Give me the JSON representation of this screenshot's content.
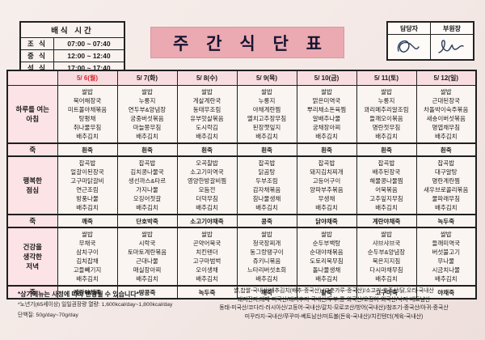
{
  "title": "주 간 식 단 표",
  "theme": {
    "title_pink": "#eba9b2",
    "header_pink": "#f8dde0",
    "label_pink": "#fbe3e6",
    "highlight_red": "#d9272e",
    "ink_blue": "#2a3a55"
  },
  "service_times": {
    "title": "배식  시간",
    "rows": [
      {
        "name": "조 식",
        "time": "07:00 ~ 07:40"
      },
      {
        "name": "중 식",
        "time": "12:00 ~ 12:40"
      },
      {
        "name": "석 식",
        "time": "17:00 ~ 17:40"
      }
    ]
  },
  "approval": {
    "left_label": "담당자",
    "right_label": "부원장",
    "left_signed": "signature-scribble",
    "right_signed": "signature-scribble"
  },
  "menu": {
    "days": [
      {
        "label": "5/ 6(월)",
        "highlight": true
      },
      {
        "label": "5/ 7(화)",
        "highlight": false
      },
      {
        "label": "5/ 8(수)",
        "highlight": false
      },
      {
        "label": "5/ 9(목)",
        "highlight": false
      },
      {
        "label": "5/ 10(금)",
        "highlight": false
      },
      {
        "label": "5/ 11(토)",
        "highlight": false
      },
      {
        "label": "5/ 12(일)",
        "highlight": false
      }
    ],
    "sections": [
      {
        "label": "하루를 여는\n아침",
        "type": "meal",
        "columns": [
          [
            "쌀밥",
            "북어해장국",
            "미트볼야채볶음",
            "탕평채",
            "취나물무침",
            "배추김치"
          ],
          [
            "쌀밥",
            "누룽지",
            "연두부&양념장",
            "궁중버섯볶음",
            "마늘쫑무침",
            "배추김치"
          ],
          [
            "쌀밥",
            "게살계란국",
            "동태무조림",
            "유부맛살볶음",
            "도시락김",
            "배추김치"
          ],
          [
            "쌀밥",
            "누룽지",
            "야채계란찜",
            "멸치고추장무침",
            "된장깻잎지",
            "배추김치"
          ],
          [
            "쌀밥",
            "맑은미역국",
            "뿌리채소돈육찜",
            "알배추나물",
            "궁채장아찌",
            "배추김치"
          ],
          [
            "쌀밥",
            "누룽지",
            "꽈리메추리알조림",
            "들깨오이볶음",
            "명란젓무침",
            "배추김치"
          ],
          [
            "쌀밥",
            "근대된장국",
            "차돌박이숙주볶음",
            "새송이버섯볶음",
            "명엽채무침",
            "배추김치"
          ]
        ]
      },
      {
        "label": "죽",
        "type": "porridge",
        "columns": [
          "흰죽",
          "흰죽",
          "흰죽",
          "흰죽",
          "흰죽",
          "흰죽",
          "흰죽"
        ]
      },
      {
        "label": "행복한\n점심",
        "type": "meal",
        "columns": [
          [
            "잡곡밥",
            "얼갈이된장국",
            "고구마닭갈비",
            "연근조림",
            "방풍나물",
            "배추김치"
          ],
          [
            "잡곡밥",
            "김치콩나물국",
            "생선까스&타르",
            "가지나물",
            "오징어젓갈",
            "배추김치"
          ],
          [
            "오곡찰밥",
            "소고기미역국",
            "영양한방갈비찜",
            "모듬전",
            "더덕무침",
            "배추김치"
          ],
          [
            "잡곡밥",
            "닭곰탕",
            "두부조림",
            "감자채볶음",
            "참나물생채",
            "배추김치"
          ],
          [
            "잡곡밥",
            "돼지김치찌개",
            "고등어구이",
            "양파부추볶음",
            "무생채",
            "배추김치"
          ],
          [
            "잡곡밥",
            "배추된장국",
            "해물콩나물찜",
            "어묵볶음",
            "고추잎지무침",
            "배추김치"
          ],
          [
            "잡곡밥",
            "대구알탕",
            "명란계란찜",
            "새우브로콜리볶음",
            "물파래무침",
            "배추김치"
          ]
        ]
      },
      {
        "label": "죽",
        "type": "porridge",
        "columns": [
          "깨죽",
          "단호박죽",
          "소고기야채죽",
          "콩죽",
          "닭야채죽",
          "계란야채죽",
          "녹두죽"
        ]
      },
      {
        "label": "건강을\n생각한\n저녁",
        "type": "meal",
        "columns": [
          [
            "쌀밥",
            "무채국",
            "삼치구이",
            "김치잡채",
            "고들빼기지",
            "배추김치"
          ],
          [
            "쌀밥",
            "시락국",
            "토마토계란볶음",
            "근대나물",
            "매실장아찌",
            "배추김치"
          ],
          [
            "쌀밥",
            "곤약어묵국",
            "치킨텐더",
            "고구마범벅",
            "오이생채",
            "배추김치"
          ],
          [
            "쌀밥",
            "청국장찌개",
            "동그랑땡구이",
            "쥬키니볶음",
            "느타리버섯초회",
            "배추김치"
          ],
          [
            "쌀밥",
            "순두부백탕",
            "순대야채볶음",
            "도토리묵무침",
            "돌나물생채",
            "배추김치"
          ],
          [
            "쌀밥",
            "샤브샤브국",
            "순두부&양념장",
            "묵은지지짐",
            "다시마채무침",
            "배추김치"
          ],
          [
            "쌀밥",
            "들깨미역국",
            "버섯불고기",
            "무나물",
            "시금치나물",
            "배추김치"
          ]
        ]
      },
      {
        "label": "죽",
        "type": "porridge",
        "columns": [
          "계란야채죽",
          "땅콩죽",
          "녹두죽",
          "깨죽",
          "팥죽",
          "고구마죽",
          "야채죽"
        ]
      }
    ]
  },
  "footnotes": {
    "change": "*상기메뉴는 사정에 따라 변경될 수 있습니다*",
    "calorie": "*노년기(65세이상) 일일권장량 열량: 1,600kcal/day~1,800kcal/day",
    "protein": "단백질: 50g/day~70g/day"
  },
  "origin_lines": [
    "쌀,찹쌀-국내산/배추김치(배추-중국산),(고춧가루-중국산)/소고기-호주산/닭,오리-국내산",
    "돼지전지,대패-미국산/돼지후지-국내산/두부,콩-외국산/오징어-외국산/낙지-베트남산",
    "동태-미국산/코다리-러시아산/고등어-국내산/갈치-모로코산/방어(국내산)/참조기-중국산/아귀-중국산",
    "미꾸라지-국내산/쭈꾸미-베트남산/미트볼(돈육-국내산)/치킨텐더(계육-국내산)"
  ]
}
